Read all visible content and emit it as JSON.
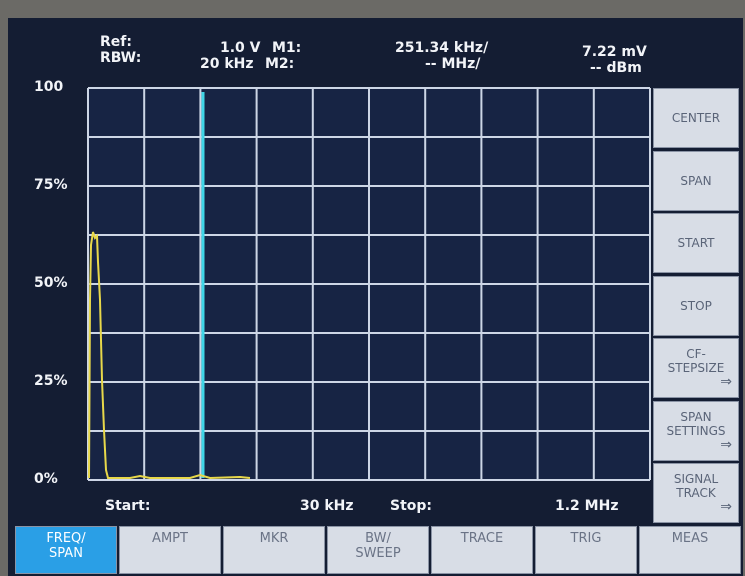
{
  "header": {
    "ref_label": "Ref:",
    "rbw_label": "RBW:",
    "ref_value": "1.0 V",
    "m1_label": "M1:",
    "rbw_value": "20 kHz",
    "m2_label": "M2:",
    "m1_freq": "251.34 kHz/",
    "m2_freq": "-- MHz/",
    "m1_level": "7.22 mV",
    "m2_level": "-- dBm"
  },
  "y_axis": [
    "100",
    "75%",
    "50%",
    "25%",
    "0%"
  ],
  "footer": {
    "start_label": "Start:",
    "start_value": "30 kHz",
    "stop_label": "Stop:",
    "stop_value": "1.2 MHz"
  },
  "softkeys": [
    {
      "lines": [
        "CENTER"
      ],
      "submenu": false
    },
    {
      "lines": [
        "SPAN"
      ],
      "submenu": false
    },
    {
      "lines": [
        "START"
      ],
      "submenu": false
    },
    {
      "lines": [
        "STOP"
      ],
      "submenu": false
    },
    {
      "lines": [
        "CF-",
        "STEPSIZE"
      ],
      "submenu": true
    },
    {
      "lines": [
        "SPAN",
        "SETTINGS"
      ],
      "submenu": true
    },
    {
      "lines": [
        "SIGNAL",
        "TRACK"
      ],
      "submenu": true
    }
  ],
  "tabs": [
    {
      "lines": [
        "FREQ/",
        "SPAN"
      ],
      "active": true
    },
    {
      "lines": [
        "AMPT"
      ],
      "active": false
    },
    {
      "lines": [
        "MKR"
      ],
      "active": false
    },
    {
      "lines": [
        "BW/",
        "SWEEP"
      ],
      "active": false
    },
    {
      "lines": [
        "TRACE"
      ],
      "active": false
    },
    {
      "lines": [
        "TRIG"
      ],
      "active": false
    },
    {
      "lines": [
        "MEAS"
      ],
      "active": false
    }
  ]
}
